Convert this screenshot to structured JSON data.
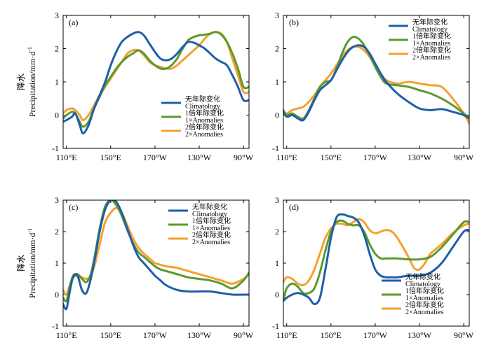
{
  "chart_data": [
    {
      "type": "line",
      "panel_label": "(a)",
      "ylabel_cn": "降水",
      "ylabel_en": "Precipitation/mm·d",
      "ylabel_sup": "-1",
      "ylim": [
        -1,
        3
      ],
      "yticks": [
        "-1",
        "0",
        "1",
        "2",
        "3"
      ],
      "xticks": [
        {
          "v": 110,
          "label": "110°E"
        },
        {
          "v": 150,
          "label": "150°E"
        },
        {
          "v": 190,
          "label": "170°W"
        },
        {
          "v": 230,
          "label": "130°W"
        },
        {
          "v": 270,
          "label": "90°W"
        }
      ],
      "xlim": [
        107,
        275
      ],
      "legend_position": "lower-right",
      "series": [
        {
          "name_cn": "无年际变化",
          "name_en": "Climatology",
          "color": "#1f5fa8",
          "x": [
            107,
            110,
            115,
            118,
            122,
            125,
            130,
            135,
            140,
            145,
            150,
            155,
            160,
            165,
            170,
            175,
            180,
            185,
            190,
            195,
            200,
            205,
            210,
            215,
            220,
            225,
            230,
            235,
            240,
            245,
            250,
            255,
            260,
            265,
            270,
            275
          ],
          "y": [
            -0.2,
            -0.15,
            -0.05,
            0.05,
            -0.3,
            -0.55,
            -0.3,
            0.2,
            0.6,
            1.0,
            1.5,
            1.9,
            2.2,
            2.35,
            2.45,
            2.5,
            2.4,
            2.15,
            1.9,
            1.7,
            1.65,
            1.7,
            1.85,
            2.05,
            2.2,
            2.18,
            2.1,
            2.0,
            1.85,
            1.7,
            1.6,
            1.5,
            1.2,
            0.85,
            0.45,
            0.45
          ]
        },
        {
          "name_cn": "1倍年际变化",
          "name_en": "1×Anomalies",
          "color": "#5a9a2e",
          "x": [
            107,
            110,
            115,
            118,
            122,
            125,
            130,
            135,
            140,
            145,
            150,
            155,
            160,
            165,
            170,
            175,
            180,
            185,
            190,
            195,
            200,
            205,
            210,
            215,
            220,
            225,
            230,
            235,
            240,
            245,
            250,
            255,
            260,
            265,
            270,
            275
          ],
          "y": [
            -0.1,
            0.0,
            0.1,
            0.05,
            -0.2,
            -0.35,
            -0.2,
            0.2,
            0.55,
            0.9,
            1.15,
            1.4,
            1.6,
            1.75,
            1.85,
            1.95,
            1.85,
            1.65,
            1.5,
            1.4,
            1.4,
            1.5,
            1.7,
            2.0,
            2.25,
            2.35,
            2.4,
            2.42,
            2.45,
            2.5,
            2.42,
            2.2,
            1.85,
            1.4,
            0.85,
            0.85
          ]
        },
        {
          "name_cn": "2倍年际变化",
          "name_en": "2×Anomalies",
          "color": "#f5a030",
          "x": [
            107,
            110,
            115,
            118,
            122,
            125,
            130,
            135,
            140,
            145,
            150,
            155,
            160,
            165,
            170,
            175,
            180,
            185,
            190,
            195,
            200,
            205,
            210,
            215,
            220,
            225,
            230,
            235,
            240,
            245,
            250,
            255,
            260,
            265,
            270,
            275
          ],
          "y": [
            0.05,
            0.15,
            0.2,
            0.15,
            0.0,
            -0.15,
            0.0,
            0.3,
            0.6,
            0.85,
            1.1,
            1.35,
            1.6,
            1.85,
            1.95,
            1.95,
            1.8,
            1.6,
            1.5,
            1.45,
            1.4,
            1.4,
            1.5,
            1.65,
            1.8,
            1.95,
            2.1,
            2.3,
            2.45,
            2.5,
            2.45,
            2.2,
            1.7,
            1.2,
            0.7,
            0.7
          ]
        }
      ]
    },
    {
      "type": "line",
      "panel_label": "(b)",
      "ylim": [
        -1,
        3
      ],
      "yticks": [
        "-1",
        "0",
        "1",
        "2",
        "3"
      ],
      "xticks": [
        {
          "v": 110,
          "label": "110°E"
        },
        {
          "v": 150,
          "label": "150°E"
        },
        {
          "v": 190,
          "label": "170°W"
        },
        {
          "v": 230,
          "label": "130°W"
        },
        {
          "v": 270,
          "label": "90°W"
        }
      ],
      "xlim": [
        107,
        275
      ],
      "legend_position": "upper-right",
      "series": [
        {
          "name_cn": "无年际变化",
          "name_en": "Climatology",
          "color": "#1f5fa8",
          "x": [
            107,
            110,
            115,
            120,
            125,
            130,
            135,
            140,
            145,
            150,
            155,
            160,
            165,
            170,
            175,
            180,
            185,
            190,
            195,
            200,
            210,
            220,
            230,
            240,
            250,
            260,
            270,
            275
          ],
          "y": [
            0.1,
            -0.05,
            0.0,
            -0.1,
            -0.15,
            0.1,
            0.45,
            0.75,
            0.9,
            1.05,
            1.35,
            1.65,
            1.9,
            2.05,
            2.1,
            2.05,
            1.85,
            1.55,
            1.25,
            1.0,
            0.65,
            0.4,
            0.2,
            0.15,
            0.18,
            0.1,
            0.0,
            -0.1
          ]
        },
        {
          "name_cn": "1倍年际变化",
          "name_en": "1×Anomalies",
          "color": "#5a9a2e",
          "x": [
            107,
            110,
            115,
            120,
            125,
            130,
            135,
            140,
            145,
            150,
            155,
            160,
            165,
            170,
            175,
            180,
            185,
            190,
            195,
            200,
            210,
            220,
            230,
            240,
            250,
            260,
            270,
            275
          ],
          "y": [
            0.15,
            0.0,
            0.05,
            -0.05,
            -0.1,
            0.15,
            0.5,
            0.85,
            1.0,
            1.05,
            1.4,
            1.85,
            2.2,
            2.35,
            2.3,
            2.1,
            1.8,
            1.45,
            1.15,
            0.95,
            0.9,
            0.85,
            0.75,
            0.65,
            0.5,
            0.3,
            0.05,
            -0.1
          ]
        },
        {
          "name_cn": "2倍年际变化",
          "name_en": "2×Anomalies",
          "color": "#f5a030",
          "x": [
            107,
            110,
            115,
            120,
            125,
            130,
            135,
            140,
            145,
            150,
            155,
            160,
            165,
            170,
            175,
            180,
            185,
            190,
            195,
            200,
            210,
            220,
            230,
            240,
            250,
            260,
            270,
            275
          ],
          "y": [
            0.1,
            0.05,
            0.15,
            0.2,
            0.25,
            0.4,
            0.6,
            0.85,
            1.05,
            1.25,
            1.5,
            1.75,
            1.95,
            2.05,
            2.05,
            1.95,
            1.75,
            1.5,
            1.25,
            1.05,
            0.95,
            1.0,
            0.95,
            0.9,
            0.85,
            0.5,
            0.05,
            -0.25
          ]
        }
      ]
    },
    {
      "type": "line",
      "panel_label": "(c)",
      "ylabel_cn": "降水",
      "ylabel_en": "Precipitation/mm·d",
      "ylabel_sup": "-1",
      "ylim": [
        -1,
        3
      ],
      "yticks": [
        "-1",
        "0",
        "1",
        "2",
        "3"
      ],
      "xticks": [
        {
          "v": 110,
          "label": "110°E"
        },
        {
          "v": 150,
          "label": "150°E"
        },
        {
          "v": 190,
          "label": "170°W"
        },
        {
          "v": 230,
          "label": "130°W"
        },
        {
          "v": 270,
          "label": "90°W"
        }
      ],
      "xlim": [
        107,
        275
      ],
      "legend_position": "upper-right",
      "series": [
        {
          "name_cn": "无年际变化",
          "name_en": "Climatology",
          "color": "#1f5fa8",
          "x": [
            107,
            110,
            113,
            116,
            120,
            124,
            128,
            132,
            136,
            140,
            145,
            150,
            155,
            160,
            165,
            170,
            175,
            180,
            185,
            190,
            195,
            200,
            210,
            220,
            230,
            240,
            250,
            260,
            270,
            275
          ],
          "y": [
            -0.3,
            -0.45,
            0.1,
            0.55,
            0.6,
            0.15,
            0.05,
            0.5,
            1.2,
            2.0,
            2.7,
            3.0,
            2.95,
            2.6,
            2.1,
            1.6,
            1.2,
            1.0,
            0.8,
            0.6,
            0.45,
            0.3,
            0.15,
            0.1,
            0.1,
            0.1,
            0.05,
            0.0,
            0.0,
            0.0
          ]
        },
        {
          "name_cn": "1倍年际变化",
          "name_en": "1×Anomalies",
          "color": "#5a9a2e",
          "x": [
            107,
            110,
            113,
            116,
            120,
            124,
            128,
            132,
            136,
            140,
            145,
            150,
            155,
            160,
            165,
            170,
            175,
            180,
            185,
            190,
            195,
            200,
            210,
            220,
            230,
            240,
            250,
            260,
            270,
            275
          ],
          "y": [
            -0.1,
            -0.2,
            0.25,
            0.6,
            0.65,
            0.5,
            0.4,
            0.65,
            1.3,
            2.1,
            2.8,
            3.0,
            2.85,
            2.5,
            2.05,
            1.65,
            1.35,
            1.2,
            1.05,
            0.9,
            0.8,
            0.75,
            0.65,
            0.55,
            0.5,
            0.45,
            0.35,
            0.2,
            0.45,
            0.7
          ]
        },
        {
          "name_cn": "2倍年际变化",
          "name_en": "2×Anomalies",
          "color": "#f5a030",
          "x": [
            107,
            110,
            113,
            116,
            120,
            124,
            128,
            132,
            136,
            140,
            145,
            150,
            155,
            160,
            165,
            170,
            175,
            180,
            185,
            190,
            195,
            200,
            210,
            220,
            230,
            240,
            250,
            260,
            270,
            275
          ],
          "y": [
            0.15,
            0.0,
            0.3,
            0.55,
            0.6,
            0.55,
            0.5,
            0.6,
            1.0,
            1.6,
            2.3,
            2.6,
            2.75,
            2.6,
            2.2,
            1.8,
            1.5,
            1.3,
            1.15,
            1.0,
            0.95,
            0.9,
            0.85,
            0.75,
            0.65,
            0.55,
            0.45,
            0.35,
            0.5,
            0.65
          ]
        }
      ]
    },
    {
      "type": "line",
      "panel_label": "(d)",
      "ylim": [
        -1,
        3
      ],
      "yticks": [
        "-1",
        "0",
        "1",
        "2",
        "3"
      ],
      "xticks": [
        {
          "v": 110,
          "label": "110°E"
        },
        {
          "v": 150,
          "label": "150°E"
        },
        {
          "v": 190,
          "label": "170°W"
        },
        {
          "v": 230,
          "label": "130°W"
        },
        {
          "v": 270,
          "label": "90°W"
        }
      ],
      "xlim": [
        107,
        275
      ],
      "legend_position": "lower-right",
      "series": [
        {
          "name_cn": "无年际变化",
          "name_en": "Climatology",
          "color": "#1f5fa8",
          "x": [
            107,
            110,
            115,
            120,
            125,
            130,
            135,
            140,
            145,
            150,
            155,
            160,
            165,
            170,
            175,
            180,
            185,
            190,
            195,
            200,
            205,
            210,
            220,
            230,
            240,
            250,
            260,
            270,
            275
          ],
          "y": [
            -0.2,
            -0.1,
            0.0,
            0.05,
            0.0,
            -0.1,
            -0.3,
            -0.1,
            0.8,
            1.8,
            2.45,
            2.55,
            2.5,
            2.45,
            2.3,
            1.9,
            1.3,
            0.8,
            0.6,
            0.55,
            0.55,
            0.55,
            0.6,
            0.6,
            0.7,
            1.0,
            1.5,
            2.0,
            2.05
          ]
        },
        {
          "name_cn": "1倍年际变化",
          "name_en": "1×Anomalies",
          "color": "#5a9a2e",
          "x": [
            107,
            110,
            115,
            120,
            125,
            130,
            135,
            140,
            145,
            150,
            155,
            160,
            165,
            170,
            175,
            180,
            185,
            190,
            195,
            200,
            205,
            210,
            220,
            230,
            240,
            250,
            260,
            270,
            275
          ],
          "y": [
            -0.15,
            0.2,
            0.35,
            0.25,
            0.05,
            0.05,
            0.2,
            0.7,
            1.4,
            2.0,
            2.3,
            2.35,
            2.25,
            2.2,
            2.2,
            2.0,
            1.6,
            1.3,
            1.15,
            1.15,
            1.15,
            1.15,
            1.12,
            1.12,
            1.2,
            1.5,
            1.9,
            2.3,
            2.3
          ]
        },
        {
          "name_cn": "2倍年际变化",
          "name_en": "2×Anomalies",
          "color": "#f5a030",
          "x": [
            107,
            110,
            115,
            120,
            125,
            130,
            135,
            140,
            145,
            150,
            155,
            160,
            165,
            170,
            175,
            180,
            185,
            190,
            195,
            200,
            205,
            210,
            220,
            225,
            230,
            235,
            240,
            250,
            260,
            270,
            275
          ],
          "y": [
            0.4,
            0.55,
            0.5,
            0.35,
            0.3,
            0.45,
            0.8,
            1.3,
            1.8,
            2.1,
            2.25,
            2.25,
            2.2,
            2.3,
            2.4,
            2.3,
            2.05,
            1.95,
            2.0,
            2.05,
            2.0,
            1.8,
            1.2,
            0.85,
            0.8,
            1.0,
            1.3,
            1.6,
            1.95,
            2.2,
            2.25
          ]
        }
      ]
    }
  ]
}
